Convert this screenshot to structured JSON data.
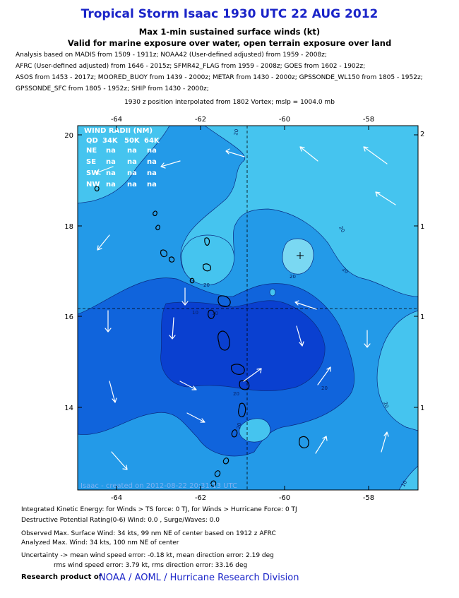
{
  "header": {
    "title": "Tropical Storm Isaac 1930 UTC 22 AUG 2012",
    "subtitle1": "Max 1-min sustained surface winds (kt)",
    "subtitle2": "Valid for marine exposure over water, open terrain exposure over land"
  },
  "sources": [
    "Analysis based on MADIS from 1509 - 1911z; NOAA42 (User-defined adjusted) from 1959 - 2008z;",
    "AFRC (User-defined adjusted) from 1646 - 2015z; SFMR42_FLAG from 1959 - 2008z; GOES from 1602 - 1902z;",
    "ASOS from 1453 - 2017z; MOORED_BUOY from 1439 - 2000z; METAR from 1430 - 2000z; GPSSONDE_WL150 from 1805 - 1952z;",
    "GPSSONDE_SFC from 1805 - 1952z; SHIP from 1430 - 2000z;"
  ],
  "position_note": "1930 z position interpolated from 1802 Vortex; mslp = 1004.0 mb",
  "map": {
    "lon_ticks": [
      "-64",
      "-62",
      "-60",
      "-58"
    ],
    "lat_ticks": [
      "20",
      "18",
      "16",
      "14"
    ],
    "right_ticks": [
      "2",
      "1",
      "1",
      "1"
    ],
    "center_lon": -60.4,
    "center_lat": 17.35,
    "colors": {
      "c_lt": "#45c4ef",
      "c_10_20": "#239ae8",
      "c_0_10": "#1064dc",
      "c_dark": "#0a40d0",
      "c_core": "#7ad8f2"
    },
    "wind_radii": {
      "title": "WIND RADII (NM)",
      "header": [
        "QD",
        "34K",
        "50K",
        "64K"
      ],
      "rows": [
        [
          "NE",
          "na",
          "na",
          "na"
        ],
        [
          "SE",
          "na",
          "na",
          "na"
        ],
        [
          "SW",
          "na",
          "na",
          "na"
        ],
        [
          "NW",
          "na",
          "na",
          "na"
        ]
      ]
    },
    "contour_labels": [
      "20",
      "20",
      "20",
      "20",
      "10",
      "20",
      "20",
      "20",
      "20",
      "10",
      "20",
      "10"
    ],
    "creation_stamp": "Isaac - created on 2012-08-22 20:31:13 UTC"
  },
  "footer": {
    "ike": "Integrated Kinetic Energy: for Winds > TS force: 0 TJ, for Winds > Hurricane Force: 0 TJ",
    "dpr": "Destructive Potential Rating(0-6)   Wind: 0.0 , Surge/Waves: 0.0",
    "observed": "Observed Max. Surface Wind: 34 kts, 99 nm NE of center based on 1912 z AFRC",
    "analyzed": "Analyzed Max. Wind: 34 kts, 100 nm  NE of center",
    "uncertainty1": "Uncertainty -> mean wind speed error:  -0.18 kt, mean direction error: 2.19 deg",
    "uncertainty2": "rms wind speed error: 3.79 kt, rms direction error: 33.16 deg",
    "research_label": "Research product of",
    "org1": "NOAA",
    "sep": "/",
    "org2": "AOML",
    "org3": "Hurricane Research Division"
  }
}
